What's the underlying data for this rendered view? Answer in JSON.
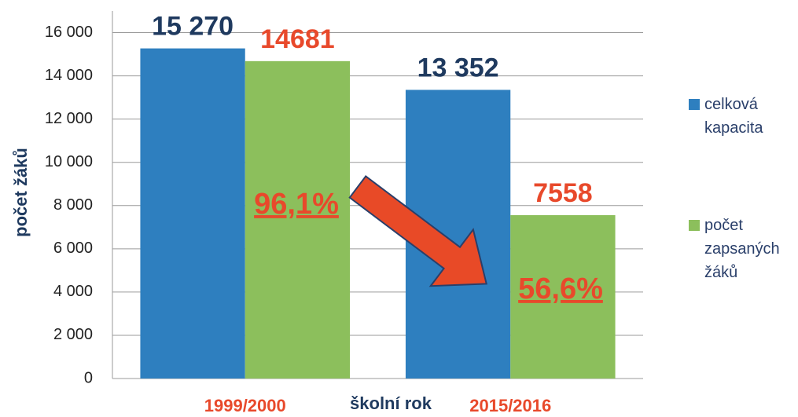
{
  "chart_data": {
    "type": "bar",
    "categories": [
      "1999/2000",
      "2015/2016"
    ],
    "series": [
      {
        "name": "celková kapacita",
        "color": "#2e7fbf",
        "values": [
          15270,
          13352
        ],
        "value_labels": [
          "15 270",
          "13 352"
        ],
        "label_color": "#1f3a5f"
      },
      {
        "name": "počet zapsaných žáků",
        "color": "#8cbf5c",
        "values": [
          14681,
          7558
        ],
        "value_labels": [
          "14681",
          "7558"
        ],
        "label_color": "#e8492b"
      }
    ],
    "annotations": [
      "96,1%",
      "56,6%"
    ],
    "x_label": "školní rok",
    "y_label": "počet žáků",
    "ylim": [
      0,
      17000
    ],
    "yticks": [
      0,
      {
        "value": 2000,
        "label": "2 000"
      },
      {
        "value": 4000,
        "label": "4 000"
      },
      {
        "value": 6000,
        "label": "6 000"
      },
      {
        "value": 8000,
        "label": "8 000"
      },
      {
        "value": 10000,
        "label": "10 000"
      },
      {
        "value": 12000,
        "label": "12 000"
      },
      {
        "value": 14000,
        "label": "14 000"
      },
      {
        "value": 16000,
        "label": "16 000"
      }
    ],
    "grid": true,
    "legend": "right"
  }
}
